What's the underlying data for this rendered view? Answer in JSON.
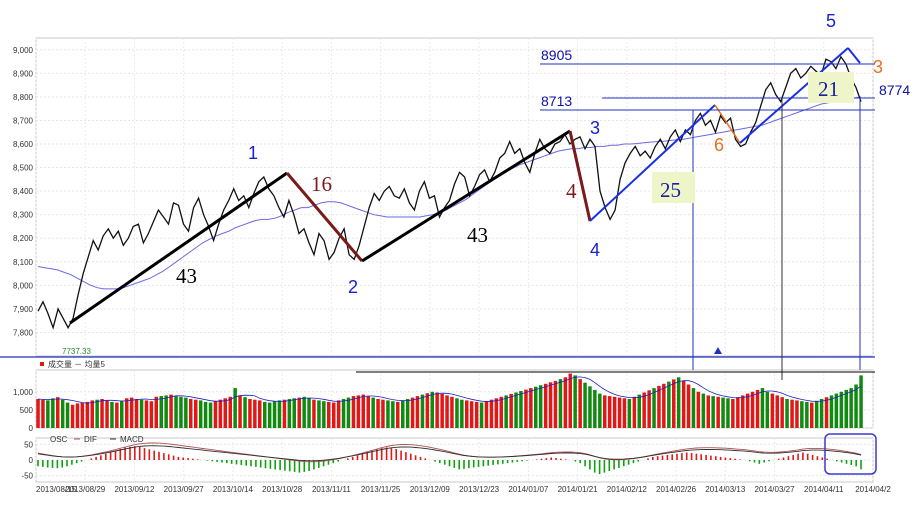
{
  "chart_data": [
    {
      "type": "line",
      "panel": "price",
      "y_ticks": [
        "9,000",
        "8,900",
        "8,800",
        "8,700",
        "8,600",
        "8,500",
        "8,400",
        "8,300",
        "8,200",
        "8,100",
        "8,000",
        "7,900",
        "7,800"
      ],
      "ylim": [
        7700,
        9050
      ],
      "min_marker": "7737.33",
      "series": [
        {
          "values": [
            7890,
            7930,
            7880,
            7820,
            7900,
            7860,
            7820,
            7860,
            7960,
            8050,
            8120,
            8190,
            8150,
            8210,
            8240,
            8200,
            8230,
            8170,
            8200,
            8250,
            8260,
            8180,
            8220,
            8270,
            8320,
            8290,
            8260,
            8350,
            8340,
            8260,
            8230,
            8330,
            8370,
            8300,
            8250,
            8190,
            8260,
            8320,
            8360,
            8410,
            8360,
            8380,
            8330,
            8390,
            8440,
            8460,
            8410,
            8380,
            8330,
            8290,
            8360,
            8300,
            8220,
            8240,
            8180,
            8130,
            8220,
            8190,
            8110,
            8140,
            8200,
            8240,
            8130,
            8110,
            8170,
            8250,
            8330,
            8390,
            8360,
            8400,
            8420,
            8380,
            8370,
            8410,
            8350,
            8320,
            8400,
            8440,
            8370,
            8380,
            8290,
            8330,
            8360,
            8430,
            8480,
            8460,
            8380,
            8420,
            8470,
            8490,
            8440,
            8480,
            8540,
            8560,
            8610,
            8560,
            8580,
            8520,
            8480,
            8560,
            8620,
            8580,
            8560,
            8600,
            8610,
            8640,
            8600,
            8620,
            8630,
            8580,
            8620,
            8590,
            8400,
            8330,
            8280,
            8320,
            8450,
            8520,
            8560,
            8590,
            8550,
            8570,
            8540,
            8590,
            8620,
            8580,
            8630,
            8660,
            8610,
            8660,
            8640,
            8700,
            8730,
            8680,
            8700,
            8650,
            8720,
            8690,
            8710,
            8620,
            8590,
            8600,
            8650,
            8690,
            8760,
            8830,
            8860,
            8810,
            8780,
            8840,
            8900,
            8920,
            8880,
            8900,
            8930,
            8910,
            8890,
            8960,
            8950,
            8920,
            8970,
            8940,
            8880,
            8840,
            8780
          ]
        },
        {
          "values": [
            8080,
            8075,
            8070,
            8065,
            8055,
            8045,
            8030,
            8015,
            8000,
            7990,
            7985,
            7985,
            7985,
            7990,
            8000,
            8010,
            8020,
            8030,
            8045,
            8060,
            8080,
            8100,
            8120,
            8140,
            8160,
            8180,
            8195,
            8210,
            8220,
            8230,
            8245,
            8255,
            8265,
            8275,
            8280,
            8280,
            8285,
            8295,
            8310,
            8320,
            8330,
            8330,
            8340,
            8350,
            8355,
            8355,
            8350,
            8340,
            8330,
            8320,
            8310,
            8300,
            8295,
            8290,
            8290,
            8290,
            8290,
            8290,
            8290,
            8295,
            8300,
            8310,
            8320,
            8335,
            8350,
            8365,
            8385,
            8405,
            8425,
            8445,
            8465,
            8480,
            8495,
            8510,
            8520,
            8530,
            8540,
            8550,
            8560,
            8570,
            8575,
            8580,
            8580,
            8585,
            8585,
            8590,
            8590,
            8595,
            8595,
            8600,
            8600,
            8602,
            8605,
            8608,
            8610,
            8612,
            8615,
            8618,
            8620,
            8625,
            8630,
            8635,
            8640,
            8645,
            8650,
            8655,
            8660,
            8665,
            8670,
            8675,
            8680,
            8690,
            8700,
            8710,
            8720,
            8730,
            8740,
            8750,
            8760,
            8770,
            8775,
            8780,
            8785,
            8790,
            8795,
            8800
          ]
        }
      ],
      "annotations": {
        "wave_labels": [
          "1",
          "2",
          "3",
          "4",
          "5",
          "3",
          "6"
        ],
        "count_labels": [
          "43",
          "16",
          "43",
          "4",
          "25",
          "21"
        ],
        "levels": [
          "8905",
          "8713",
          "8774"
        ]
      }
    },
    {
      "type": "bar",
      "panel": "volume",
      "legend": "成交量 － 均量5",
      "y_ticks": [
        "1,000",
        "500",
        "0"
      ],
      "ylim": [
        0,
        1600
      ],
      "values": [
        800,
        780,
        760,
        820,
        850,
        780,
        700,
        640,
        680,
        700,
        720,
        760,
        780,
        800,
        760,
        720,
        700,
        750,
        820,
        840,
        800,
        780,
        760,
        740,
        860,
        880,
        900,
        920,
        880,
        860,
        840,
        800,
        780,
        760,
        720,
        700,
        740,
        780,
        820,
        860,
        1100,
        900,
        850,
        800,
        780,
        760,
        720,
        700,
        740,
        760,
        780,
        800,
        820,
        840,
        860,
        820,
        780,
        760,
        740,
        720,
        700,
        760,
        800,
        840,
        880,
        900,
        920,
        880,
        840,
        800,
        780,
        760,
        740,
        720,
        760,
        800,
        840,
        880,
        920,
        960,
        1000,
        980,
        940,
        900,
        860,
        820,
        780,
        760,
        740,
        720,
        700,
        740,
        780,
        820,
        860,
        900,
        940,
        980,
        1020,
        1060,
        1100,
        1140,
        1180,
        1220,
        1260,
        1300,
        1350,
        1400,
        1500,
        1450,
        1350,
        1250,
        1150,
        1050,
        950,
        900,
        880,
        860,
        840,
        820,
        800,
        860,
        920,
        980,
        1040,
        1100,
        1160,
        1220,
        1280,
        1340,
        1400,
        1300,
        1200,
        1100,
        1000,
        950,
        900,
        880,
        860,
        840,
        820,
        800,
        850,
        900,
        950,
        1000,
        1050,
        1100,
        1000,
        950,
        900,
        850,
        800,
        780,
        760,
        740,
        720,
        700,
        750,
        800,
        850,
        900,
        950,
        1000,
        1050,
        1100,
        1200,
        1450
      ],
      "colors": {
        "up": "#e01818",
        "down": "#108a10",
        "avg": "#2020c0"
      }
    },
    {
      "type": "bar",
      "panel": "macd",
      "legend": [
        "OSC",
        "DIF",
        "MACD"
      ],
      "y_ticks": [
        "50",
        "0",
        "-50"
      ],
      "ylim": [
        -70,
        70
      ],
      "values": [
        -20,
        -22,
        -24,
        -25,
        -26,
        -24,
        -20,
        -15,
        -10,
        -5,
        0,
        5,
        10,
        15,
        20,
        25,
        30,
        35,
        40,
        42,
        44,
        42,
        38,
        34,
        30,
        26,
        22,
        18,
        14,
        10,
        8,
        6,
        4,
        2,
        0,
        -2,
        -4,
        -6,
        -8,
        -10,
        -12,
        -14,
        -16,
        -18,
        -20,
        -22,
        -24,
        -26,
        -28,
        -30,
        -32,
        -34,
        -36,
        -38,
        -40,
        -38,
        -35,
        -30,
        -25,
        -20,
        -15,
        -10,
        -5,
        0,
        5,
        10,
        15,
        20,
        25,
        30,
        35,
        38,
        40,
        38,
        35,
        30,
        25,
        20,
        15,
        10,
        5,
        0,
        -5,
        -10,
        -15,
        -20,
        -25,
        -30,
        -28,
        -26,
        -24,
        -22,
        -20,
        -18,
        -16,
        -14,
        -12,
        -10,
        -8,
        -6,
        -4,
        -2,
        0,
        2,
        4,
        6,
        8,
        6,
        4,
        2,
        0,
        -5,
        -10,
        -20,
        -30,
        -40,
        -45,
        -40,
        -35,
        -30,
        -25,
        -20,
        -15,
        -10,
        -5,
        0,
        5,
        10,
        12,
        14,
        16,
        18,
        20,
        22,
        24,
        22,
        20,
        18,
        16,
        14,
        12,
        10,
        8,
        6,
        4,
        2,
        0,
        -4,
        -8,
        -12,
        -8,
        -4,
        0,
        4,
        8,
        12,
        16,
        20,
        24,
        20,
        16,
        12,
        8,
        4,
        0,
        -4,
        -8,
        -12,
        -16,
        -20,
        -30
      ],
      "x_ticks": [
        "2013/08/15",
        "2013/08/29",
        "2013/09/12",
        "2013/09/27",
        "2013/10/14",
        "2013/10/28",
        "2013/11/11",
        "2013/11/25",
        "2013/12/09",
        "2013/12/23",
        "2014/01/07",
        "2014/01/21",
        "2014/02/12",
        "2014/02/26",
        "2014/03/13",
        "2014/03/27",
        "2014/04/11",
        "2014/04/2"
      ]
    }
  ]
}
